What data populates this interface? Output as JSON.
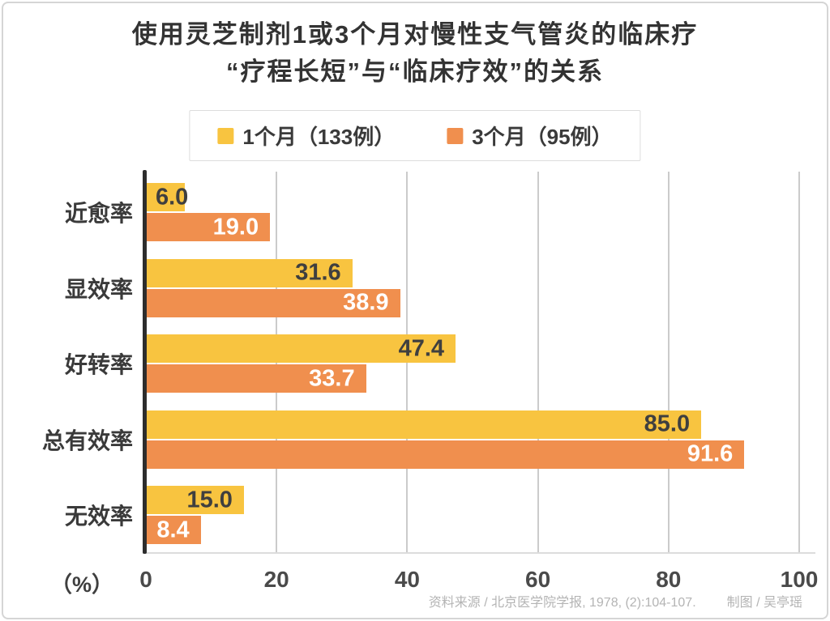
{
  "page": {
    "title_line1": "使用灵芝制剂1或3个月对慢性支气管炎的临床疗",
    "title_line2": "“疗程长短”与“临床疗效”的关系",
    "source_note": "资料来源 / 北京医学院学报, 1978, (2):104-107.",
    "credit_note": "制图 / 吴亭瑶"
  },
  "chart_data": {
    "type": "bar",
    "orientation": "horizontal",
    "title": "使用灵芝制剂1或3个月对慢性支气管炎的临床疗 “疗程长短”与“临床疗效”的关系",
    "categories": [
      "近愈率",
      "显效率",
      "好转率",
      "总有效率",
      "无效率"
    ],
    "series": [
      {
        "name": "1个月（133例）",
        "color": "#F8C440",
        "label_color": "#3F3F3F",
        "values": [
          6.0,
          31.6,
          47.4,
          85.0,
          15.0
        ]
      },
      {
        "name": "3个月（95例）",
        "color": "#F08F4E",
        "label_color": "#FFFFFF",
        "values": [
          19.0,
          38.9,
          33.7,
          91.6,
          8.4
        ]
      }
    ],
    "xlabel": "（%）",
    "x_ticks": [
      0,
      20,
      40,
      60,
      80,
      100
    ],
    "xlim": [
      0,
      100
    ],
    "grid": "vertical",
    "legend_position": "top-center",
    "colors": {
      "axis_line": "#2D2D2D",
      "gridline": "#CBCBCB",
      "title_text": "#333333",
      "footer_text": "#B4B4B4"
    }
  }
}
